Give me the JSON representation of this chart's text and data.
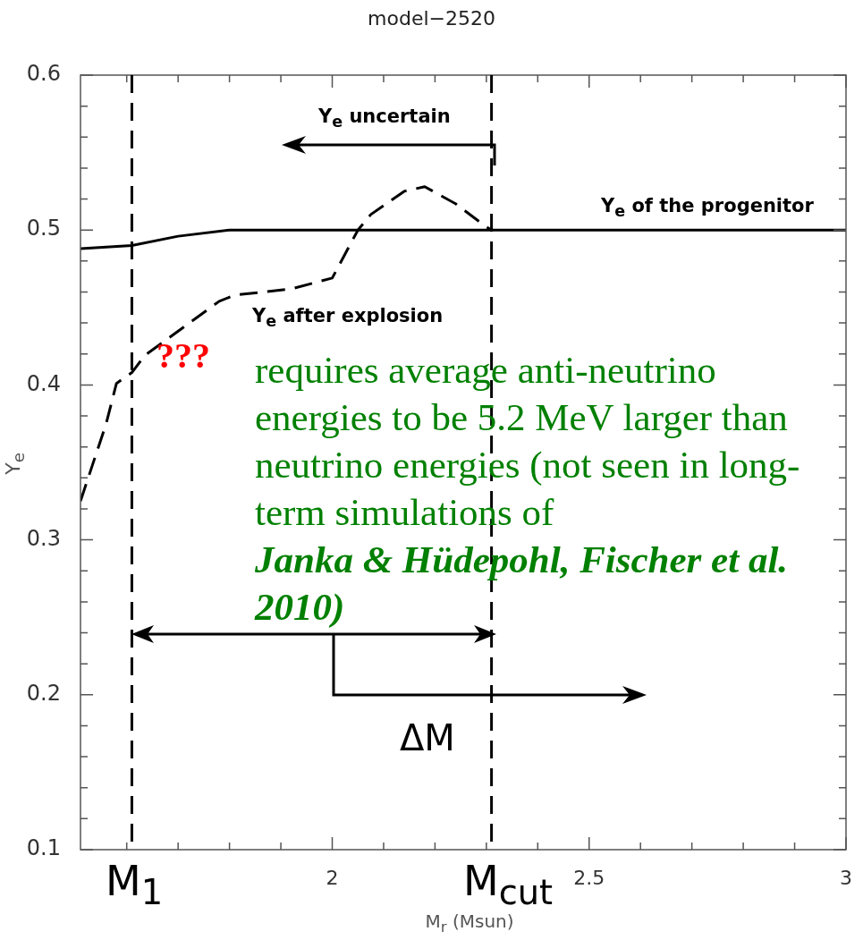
{
  "chart_data": {
    "type": "line",
    "title": "model−2520",
    "xlabel": "M$_{r}$ (Msun)",
    "ylabel": "Y$_{e}$",
    "xlim": [
      1.51,
      3
    ],
    "xticks": [
      {
        "value": 1.6,
        "label": null
      },
      {
        "value": 1.7,
        "label": null
      },
      {
        "value": 1.8,
        "label": null
      },
      {
        "value": 1.9,
        "label": null
      },
      2,
      {
        "value": 2.1,
        "label": null
      },
      {
        "value": 2.2,
        "label": null
      },
      {
        "value": 2.3,
        "label": null
      },
      {
        "value": 2.4,
        "label": null
      },
      2.5,
      {
        "value": 2.6,
        "label": null
      },
      {
        "value": 2.7,
        "label": null
      },
      {
        "value": 2.8,
        "label": null
      },
      {
        "value": 2.9,
        "label": null
      },
      3
    ],
    "ylim": [
      0.1,
      0.6
    ],
    "yticks": [
      0.1,
      {
        "value": 0.12,
        "label": null
      },
      {
        "value": 0.14,
        "label": null
      },
      {
        "value": 0.16,
        "label": null
      },
      {
        "value": 0.18,
        "label": null
      },
      0.2,
      {
        "value": 0.22,
        "label": null
      },
      {
        "value": 0.24,
        "label": null
      },
      {
        "value": 0.26,
        "label": null
      },
      {
        "value": 0.28,
        "label": null
      },
      0.3,
      {
        "value": 0.32,
        "label": null
      },
      {
        "value": 0.34,
        "label": null
      },
      {
        "value": 0.36,
        "label": null
      },
      {
        "value": 0.38,
        "label": null
      },
      0.4,
      {
        "value": 0.42,
        "label": null
      },
      {
        "value": 0.44,
        "label": null
      },
      {
        "value": 0.46,
        "label": null
      },
      {
        "value": 0.48,
        "label": null
      },
      0.5,
      {
        "value": 0.52,
        "label": null
      },
      {
        "value": 0.54,
        "label": null
      },
      {
        "value": 0.56,
        "label": null
      },
      {
        "value": 0.58,
        "label": null
      },
      0.6
    ],
    "grid": false,
    "legend": false,
    "marker": "none",
    "series": [
      {
        "name": "Y$_{e}$ of the progenitor",
        "color": "#000000",
        "line_style": "solid",
        "x": [
          1.51,
          1.61,
          1.7,
          1.8,
          3
        ],
        "values": [
          0.488,
          0.49,
          0.496,
          0.5,
          0.5
        ]
      },
      {
        "name": "Y$_{e}$ after explosion",
        "color": "#000000",
        "line_style": "dashed",
        "x": [
          1.51,
          1.56,
          1.58,
          1.61,
          1.635,
          1.78,
          1.81,
          1.92,
          2.0,
          2.05,
          2.075,
          2.14,
          2.18,
          2.24,
          2.3,
          2.31
        ],
        "values": [
          0.325,
          0.375,
          0.401,
          0.408,
          0.419,
          0.454,
          0.458,
          0.462,
          0.469,
          0.5,
          0.51,
          0.525,
          0.528,
          0.517,
          0.502,
          0.5
        ]
      }
    ],
    "ref_lines": [
      {
        "axis": "x",
        "value": 1.61,
        "label": "M$_{1}$",
        "color": "#000000",
        "line_style": "dashed"
      },
      {
        "axis": "x",
        "value": 2.31,
        "label": "M$_{cut}$",
        "color": "#000000",
        "line_style": "dashed"
      }
    ],
    "annotations": [
      "Y$_{e}$ uncertain",
      "???",
      "requires average anti-neutrino energies to be 5.2 MeV larger than neutrino energies (not seen in long-term simulations of",
      "Janka & Hüdepohl, Fischer et al. 2010)",
      "ΔM"
    ]
  }
}
